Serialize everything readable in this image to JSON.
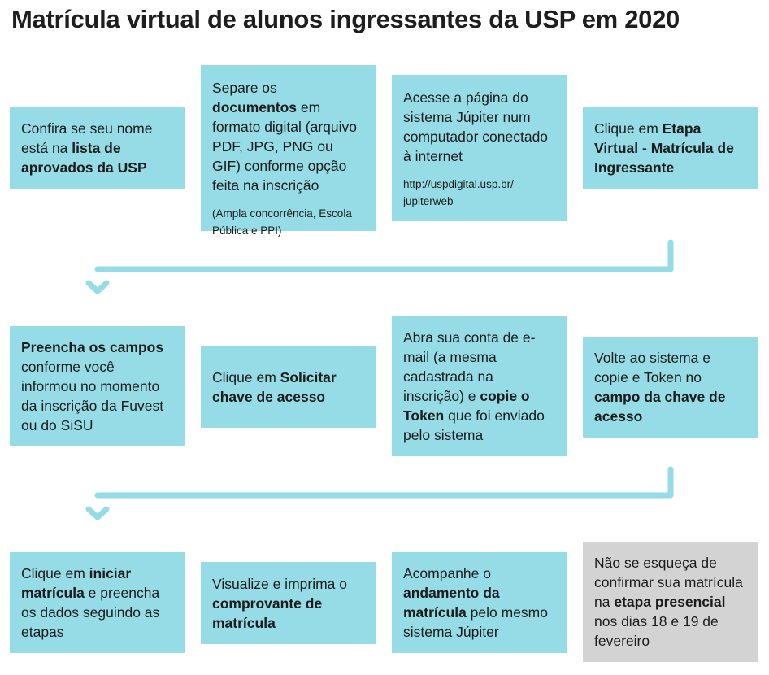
{
  "title": "Matrícula virtual de alunos ingressantes da USP em 2020",
  "colors": {
    "step_box": "#95dce6",
    "final_box": "#d3d3d3",
    "connector": "#95dce6",
    "text": "#1c1c1c"
  },
  "steps": [
    {
      "parts": [
        {
          "t": "Confira se seu nome está na "
        },
        {
          "t": "lista de aprovados da USP",
          "b": true
        }
      ]
    },
    {
      "parts": [
        {
          "t": "Separe os "
        },
        {
          "t": "documentos",
          "b": true
        },
        {
          "t": " em formato digital (arquivo PDF, JPG, PNG ou GIF) conforme opção feita na inscrição"
        }
      ],
      "note": "(Ampla concorrência, Escola Pública e PPI)"
    },
    {
      "parts": [
        {
          "t": "Acesse a página do sistema Júpiter num computador conectado à internet"
        }
      ],
      "note": "http://uspdigital.usp.br/ jupiterweb"
    },
    {
      "parts": [
        {
          "t": "Clique em "
        },
        {
          "t": "Etapa Virtual - Matrícula de Ingressante",
          "b": true
        }
      ]
    },
    {
      "parts": [
        {
          "t": "Preencha os campos",
          "b": true
        },
        {
          "t": " conforme você informou no momento da inscrição da Fuvest ou do SiSU"
        }
      ]
    },
    {
      "parts": [
        {
          "t": "Clique em "
        },
        {
          "t": "Solicitar chave de acesso",
          "b": true
        }
      ]
    },
    {
      "parts": [
        {
          "t": "Abra sua conta de e-mail (a mesma cadastrada na inscrição) e "
        },
        {
          "t": "copie o Token",
          "b": true
        },
        {
          "t": " que foi enviado pelo sistema"
        }
      ]
    },
    {
      "parts": [
        {
          "t": "Volte ao sistema e copie e Token no "
        },
        {
          "t": "campo da chave de acesso",
          "b": true
        }
      ]
    },
    {
      "parts": [
        {
          "t": "Clique em "
        },
        {
          "t": "iniciar matrícula",
          "b": true
        },
        {
          "t": " e preencha os dados seguindo as etapas"
        }
      ]
    },
    {
      "parts": [
        {
          "t": "Visualize e imprima o "
        },
        {
          "t": "comprovante de matrícula",
          "b": true
        }
      ]
    },
    {
      "parts": [
        {
          "t": "Acompanhe o "
        },
        {
          "t": "andamento da matrícula",
          "b": true
        },
        {
          "t": " pelo mesmo sistema Júpiter"
        }
      ]
    },
    {
      "parts": [
        {
          "t": "Não se esqueça de confirmar sua matrícula na "
        },
        {
          "t": "etapa presencial",
          "b": true
        },
        {
          "t": " nos dias 18 e 19 de fevereiro"
        }
      ],
      "gray": true
    }
  ]
}
